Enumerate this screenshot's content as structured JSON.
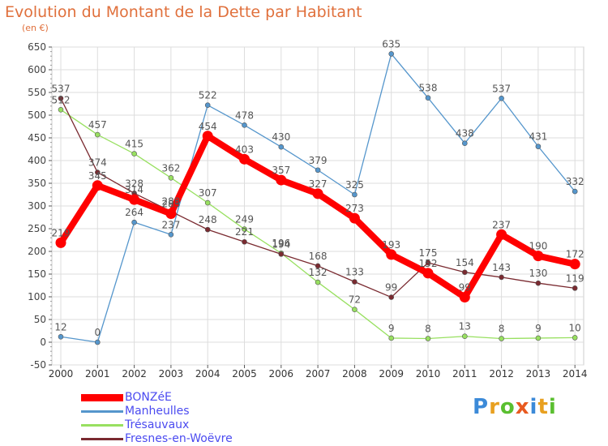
{
  "header": {
    "title": "Evolution du Montant de la Dette par Habitant",
    "unit": "(en €)"
  },
  "chart_data": {
    "type": "line",
    "title": "Evolution du Montant de la Dette par Habitant",
    "ylabel": "(en €)",
    "xlabel": "",
    "x": [
      "2000",
      "2001",
      "2002",
      "2003",
      "2004",
      "2005",
      "2006",
      "2007",
      "2008",
      "2009",
      "2010",
      "2011",
      "2012",
      "2013",
      "2014"
    ],
    "ylim": [
      -50,
      650
    ],
    "yticks": [
      "-50",
      "0",
      "50",
      "100",
      "150",
      "200",
      "250",
      "300",
      "350",
      "400",
      "450",
      "500",
      "550",
      "600",
      "650"
    ],
    "grid": true,
    "legend_position": "bottom-left",
    "series": [
      {
        "name": "BONZéE",
        "color": "#ff0000",
        "values": [
          219,
          345,
          314,
          283,
          454,
          403,
          357,
          327,
          273,
          193,
          152,
          99,
          237,
          190,
          172
        ],
        "labels": [
          "219",
          "345",
          "314",
          "283",
          "454",
          "403",
          "357",
          "327",
          "273",
          "193",
          "152",
          "99",
          "237",
          "190",
          "172"
        ]
      },
      {
        "name": "Manheulles",
        "color": "#5596cc",
        "values": [
          12,
          0,
          264,
          237,
          522,
          478,
          430,
          379,
          325,
          635,
          538,
          438,
          537,
          431,
          332
        ],
        "labels": [
          "12",
          "0",
          "264",
          "237",
          "522",
          "478",
          "430",
          "379",
          "325",
          "635",
          "538",
          "438",
          "537",
          "431",
          "332"
        ]
      },
      {
        "name": "Trésauvaux",
        "color": "#98e060",
        "values": [
          512,
          457,
          415,
          362,
          307,
          249,
          196,
          132,
          72,
          9,
          8,
          13,
          8,
          9,
          10
        ],
        "labels": [
          "512",
          "457",
          "415",
          "362",
          "307",
          "249",
          "196",
          "132",
          "72",
          "9",
          "8",
          "13",
          "8",
          "9",
          "10"
        ]
      },
      {
        "name": "Fresnes-en-Woëvre",
        "color": "#7a2a30",
        "values": [
          537,
          374,
          328,
          288,
          248,
          221,
          194,
          168,
          133,
          99,
          175,
          154,
          143,
          130,
          119
        ],
        "labels": [
          "537",
          "374",
          "328",
          "288",
          "248",
          "221",
          "194",
          "168",
          "133",
          "99",
          "175",
          "154",
          "143",
          "130",
          "119"
        ]
      }
    ]
  },
  "legend": {
    "items": [
      {
        "label": "BONZéE",
        "color": "#ff0000"
      },
      {
        "label": "Manheulles",
        "color": "#5596cc"
      },
      {
        "label": "Trésauvaux",
        "color": "#98e060"
      },
      {
        "label": "Fresnes-en-Woëvre",
        "color": "#7a2a30"
      }
    ]
  },
  "logo": {
    "letters": [
      "P",
      "r",
      "o",
      "x",
      "i",
      "t",
      "i"
    ],
    "colors": [
      "#3c8ad8",
      "#e8a020",
      "#5abf30",
      "#e85a20",
      "#3c8ad8",
      "#e8a020",
      "#5abf30"
    ]
  }
}
